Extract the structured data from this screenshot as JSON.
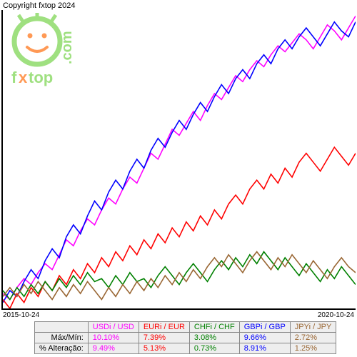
{
  "copyright": "Copyright fxtop 2024",
  "watermark": {
    "brand": "fxtop",
    "suffix": ".com"
  },
  "chart": {
    "type": "line",
    "background_color": "#ffffff",
    "axis_color": "#000000",
    "xmin_label": "2015-10-24",
    "xmax_label": "2020-10-24",
    "series": [
      {
        "id": "usdi",
        "label": "USDi / USD",
        "color": "#ff00ff",
        "max_min": "10.10%",
        "pct_change": "9.49%",
        "points": [
          [
            0,
            0.05
          ],
          [
            0.02,
            0.03
          ],
          [
            0.04,
            0.07
          ],
          [
            0.06,
            0.1
          ],
          [
            0.08,
            0.08
          ],
          [
            0.1,
            0.12
          ],
          [
            0.12,
            0.15
          ],
          [
            0.14,
            0.13
          ],
          [
            0.16,
            0.18
          ],
          [
            0.18,
            0.23
          ],
          [
            0.2,
            0.21
          ],
          [
            0.22,
            0.26
          ],
          [
            0.24,
            0.3
          ],
          [
            0.26,
            0.28
          ],
          [
            0.28,
            0.33
          ],
          [
            0.3,
            0.37
          ],
          [
            0.32,
            0.35
          ],
          [
            0.34,
            0.4
          ],
          [
            0.36,
            0.44
          ],
          [
            0.38,
            0.42
          ],
          [
            0.4,
            0.47
          ],
          [
            0.42,
            0.52
          ],
          [
            0.44,
            0.5
          ],
          [
            0.46,
            0.55
          ],
          [
            0.48,
            0.6
          ],
          [
            0.5,
            0.58
          ],
          [
            0.52,
            0.62
          ],
          [
            0.54,
            0.66
          ],
          [
            0.56,
            0.63
          ],
          [
            0.58,
            0.68
          ],
          [
            0.6,
            0.72
          ],
          [
            0.62,
            0.7
          ],
          [
            0.64,
            0.74
          ],
          [
            0.66,
            0.78
          ],
          [
            0.68,
            0.76
          ],
          [
            0.7,
            0.8
          ],
          [
            0.72,
            0.83
          ],
          [
            0.74,
            0.81
          ],
          [
            0.76,
            0.85
          ],
          [
            0.78,
            0.88
          ],
          [
            0.8,
            0.86
          ],
          [
            0.82,
            0.89
          ],
          [
            0.84,
            0.92
          ],
          [
            0.86,
            0.9
          ],
          [
            0.88,
            0.87
          ],
          [
            0.9,
            0.91
          ],
          [
            0.92,
            0.95
          ],
          [
            0.94,
            0.93
          ],
          [
            0.96,
            0.9
          ],
          [
            0.98,
            0.94
          ],
          [
            1.0,
            0.98
          ]
        ]
      },
      {
        "id": "gbpi",
        "label": "GBPi / GBP",
        "color": "#0000ff",
        "max_min": "9.66%",
        "pct_change": "8.91%",
        "points": [
          [
            0,
            0.02
          ],
          [
            0.02,
            0.06
          ],
          [
            0.04,
            0.04
          ],
          [
            0.06,
            0.09
          ],
          [
            0.08,
            0.13
          ],
          [
            0.1,
            0.1
          ],
          [
            0.12,
            0.16
          ],
          [
            0.14,
            0.2
          ],
          [
            0.16,
            0.17
          ],
          [
            0.18,
            0.24
          ],
          [
            0.2,
            0.28
          ],
          [
            0.22,
            0.25
          ],
          [
            0.24,
            0.31
          ],
          [
            0.26,
            0.36
          ],
          [
            0.28,
            0.33
          ],
          [
            0.3,
            0.39
          ],
          [
            0.32,
            0.43
          ],
          [
            0.34,
            0.4
          ],
          [
            0.36,
            0.46
          ],
          [
            0.38,
            0.5
          ],
          [
            0.4,
            0.47
          ],
          [
            0.42,
            0.53
          ],
          [
            0.44,
            0.57
          ],
          [
            0.46,
            0.54
          ],
          [
            0.48,
            0.59
          ],
          [
            0.5,
            0.63
          ],
          [
            0.52,
            0.6
          ],
          [
            0.54,
            0.65
          ],
          [
            0.56,
            0.69
          ],
          [
            0.58,
            0.66
          ],
          [
            0.6,
            0.71
          ],
          [
            0.62,
            0.75
          ],
          [
            0.64,
            0.72
          ],
          [
            0.66,
            0.77
          ],
          [
            0.68,
            0.8
          ],
          [
            0.7,
            0.77
          ],
          [
            0.72,
            0.82
          ],
          [
            0.74,
            0.85
          ],
          [
            0.76,
            0.82
          ],
          [
            0.78,
            0.87
          ],
          [
            0.8,
            0.9
          ],
          [
            0.82,
            0.87
          ],
          [
            0.84,
            0.91
          ],
          [
            0.86,
            0.94
          ],
          [
            0.88,
            0.91
          ],
          [
            0.9,
            0.88
          ],
          [
            0.92,
            0.92
          ],
          [
            0.94,
            0.96
          ],
          [
            0.96,
            0.93
          ],
          [
            0.98,
            0.91
          ],
          [
            1.0,
            0.96
          ]
        ]
      },
      {
        "id": "euri",
        "label": "EURi / EUR",
        "color": "#ff0000",
        "max_min": "7.39%",
        "pct_change": "5.13%",
        "points": [
          [
            0,
            0.03
          ],
          [
            0.02,
            0.0
          ],
          [
            0.04,
            0.05
          ],
          [
            0.06,
            0.02
          ],
          [
            0.08,
            0.07
          ],
          [
            0.1,
            0.04
          ],
          [
            0.12,
            0.09
          ],
          [
            0.14,
            0.06
          ],
          [
            0.16,
            0.11
          ],
          [
            0.18,
            0.08
          ],
          [
            0.2,
            0.13
          ],
          [
            0.22,
            0.1
          ],
          [
            0.24,
            0.15
          ],
          [
            0.26,
            0.12
          ],
          [
            0.28,
            0.17
          ],
          [
            0.3,
            0.14
          ],
          [
            0.32,
            0.19
          ],
          [
            0.34,
            0.16
          ],
          [
            0.36,
            0.21
          ],
          [
            0.38,
            0.18
          ],
          [
            0.4,
            0.23
          ],
          [
            0.42,
            0.2
          ],
          [
            0.44,
            0.25
          ],
          [
            0.46,
            0.22
          ],
          [
            0.48,
            0.27
          ],
          [
            0.5,
            0.24
          ],
          [
            0.52,
            0.29
          ],
          [
            0.54,
            0.26
          ],
          [
            0.56,
            0.31
          ],
          [
            0.58,
            0.28
          ],
          [
            0.6,
            0.33
          ],
          [
            0.62,
            0.3
          ],
          [
            0.64,
            0.35
          ],
          [
            0.66,
            0.38
          ],
          [
            0.68,
            0.35
          ],
          [
            0.7,
            0.4
          ],
          [
            0.72,
            0.43
          ],
          [
            0.74,
            0.4
          ],
          [
            0.76,
            0.45
          ],
          [
            0.78,
            0.42
          ],
          [
            0.8,
            0.47
          ],
          [
            0.82,
            0.44
          ],
          [
            0.84,
            0.49
          ],
          [
            0.86,
            0.52
          ],
          [
            0.88,
            0.49
          ],
          [
            0.9,
            0.46
          ],
          [
            0.92,
            0.5
          ],
          [
            0.94,
            0.54
          ],
          [
            0.96,
            0.51
          ],
          [
            0.98,
            0.48
          ],
          [
            1.0,
            0.52
          ]
        ]
      },
      {
        "id": "chfi",
        "label": "CHFi / CHF",
        "color": "#008000",
        "max_min": "3.08%",
        "pct_change": "0.73%",
        "points": [
          [
            0,
            0.06
          ],
          [
            0.02,
            0.03
          ],
          [
            0.04,
            0.07
          ],
          [
            0.06,
            0.04
          ],
          [
            0.08,
            0.08
          ],
          [
            0.1,
            0.05
          ],
          [
            0.12,
            0.09
          ],
          [
            0.14,
            0.06
          ],
          [
            0.16,
            0.1
          ],
          [
            0.18,
            0.07
          ],
          [
            0.2,
            0.11
          ],
          [
            0.22,
            0.08
          ],
          [
            0.24,
            0.12
          ],
          [
            0.26,
            0.09
          ],
          [
            0.28,
            0.1
          ],
          [
            0.3,
            0.07
          ],
          [
            0.32,
            0.11
          ],
          [
            0.34,
            0.08
          ],
          [
            0.36,
            0.12
          ],
          [
            0.38,
            0.09
          ],
          [
            0.4,
            0.1
          ],
          [
            0.42,
            0.07
          ],
          [
            0.44,
            0.11
          ],
          [
            0.46,
            0.14
          ],
          [
            0.48,
            0.11
          ],
          [
            0.5,
            0.08
          ],
          [
            0.52,
            0.12
          ],
          [
            0.54,
            0.15
          ],
          [
            0.56,
            0.12
          ],
          [
            0.58,
            0.09
          ],
          [
            0.6,
            0.13
          ],
          [
            0.62,
            0.16
          ],
          [
            0.64,
            0.13
          ],
          [
            0.66,
            0.17
          ],
          [
            0.68,
            0.14
          ],
          [
            0.7,
            0.18
          ],
          [
            0.72,
            0.15
          ],
          [
            0.74,
            0.19
          ],
          [
            0.76,
            0.16
          ],
          [
            0.78,
            0.13
          ],
          [
            0.8,
            0.17
          ],
          [
            0.82,
            0.14
          ],
          [
            0.84,
            0.11
          ],
          [
            0.86,
            0.15
          ],
          [
            0.88,
            0.12
          ],
          [
            0.9,
            0.09
          ],
          [
            0.92,
            0.13
          ],
          [
            0.94,
            0.1
          ],
          [
            0.96,
            0.14
          ],
          [
            0.98,
            0.11
          ],
          [
            1.0,
            0.08
          ]
        ]
      },
      {
        "id": "jpyi",
        "label": "JPYi / JPY",
        "color": "#996633",
        "max_min": "2.72%",
        "pct_change": "1.25%",
        "points": [
          [
            0,
            0.04
          ],
          [
            0.02,
            0.07
          ],
          [
            0.04,
            0.04
          ],
          [
            0.06,
            0.08
          ],
          [
            0.08,
            0.05
          ],
          [
            0.1,
            0.09
          ],
          [
            0.12,
            0.06
          ],
          [
            0.14,
            0.03
          ],
          [
            0.16,
            0.07
          ],
          [
            0.18,
            0.04
          ],
          [
            0.2,
            0.08
          ],
          [
            0.22,
            0.05
          ],
          [
            0.24,
            0.09
          ],
          [
            0.26,
            0.06
          ],
          [
            0.28,
            0.03
          ],
          [
            0.3,
            0.07
          ],
          [
            0.32,
            0.04
          ],
          [
            0.34,
            0.08
          ],
          [
            0.36,
            0.05
          ],
          [
            0.38,
            0.09
          ],
          [
            0.4,
            0.06
          ],
          [
            0.42,
            0.1
          ],
          [
            0.44,
            0.07
          ],
          [
            0.46,
            0.11
          ],
          [
            0.48,
            0.08
          ],
          [
            0.5,
            0.12
          ],
          [
            0.52,
            0.09
          ],
          [
            0.54,
            0.13
          ],
          [
            0.56,
            0.1
          ],
          [
            0.58,
            0.14
          ],
          [
            0.6,
            0.17
          ],
          [
            0.62,
            0.14
          ],
          [
            0.64,
            0.18
          ],
          [
            0.66,
            0.15
          ],
          [
            0.68,
            0.12
          ],
          [
            0.7,
            0.16
          ],
          [
            0.72,
            0.19
          ],
          [
            0.74,
            0.16
          ],
          [
            0.76,
            0.13
          ],
          [
            0.78,
            0.17
          ],
          [
            0.8,
            0.14
          ],
          [
            0.82,
            0.18
          ],
          [
            0.84,
            0.15
          ],
          [
            0.86,
            0.12
          ],
          [
            0.88,
            0.16
          ],
          [
            0.9,
            0.13
          ],
          [
            0.92,
            0.1
          ],
          [
            0.94,
            0.14
          ],
          [
            0.96,
            0.17
          ],
          [
            0.98,
            0.14
          ],
          [
            1.0,
            0.12
          ]
        ]
      }
    ]
  },
  "table": {
    "row_max_min": "Máx/Mín:",
    "row_pct_change": "% Alteração:",
    "header_bg": "#eeeeee",
    "cell_bg": "#eeeeee",
    "border_color": "#888888",
    "columns_order": [
      "usdi",
      "euri",
      "chfi",
      "gbpi",
      "jpyi"
    ]
  }
}
